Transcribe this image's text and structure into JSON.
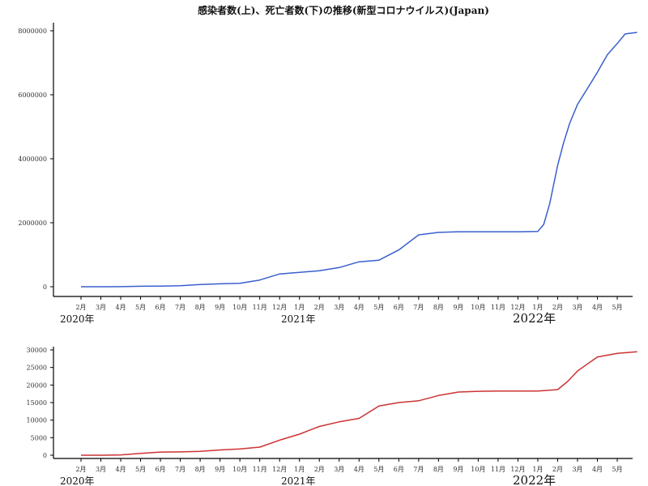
{
  "chart_data": [
    {
      "type": "line",
      "title": "感染者数(上)、死亡者数(下)の推移(新型コロナウイルス)(Japan)",
      "xlabel": "",
      "ylabel": "",
      "ylim": [
        0,
        8000000
      ],
      "yticks": [
        "0",
        "2000000",
        "4000000",
        "6000000",
        "8000000"
      ],
      "ytick_values": [
        0,
        2000000,
        4000000,
        6000000,
        8000000
      ],
      "month_labels": [
        "2月",
        "3月",
        "4月",
        "5月",
        "6月",
        "7月",
        "8月",
        "9月",
        "10月",
        "11月",
        "12月",
        "1月",
        "2月",
        "3月",
        "4月",
        "5月",
        "6月",
        "7月",
        "8月",
        "9月",
        "10月",
        "11月",
        "12月",
        "1月",
        "2月",
        "3月",
        "4月",
        "5月"
      ],
      "year_labels": [
        "2020年",
        "2021年",
        "2022年"
      ],
      "grid": false,
      "series": [
        {
          "color": "#3a5fcd",
          "x": [
            0,
            1,
            2,
            3,
            4,
            5,
            6,
            7,
            8,
            9,
            10,
            11,
            12,
            13,
            14,
            15,
            16,
            17,
            18,
            19,
            20,
            21,
            22,
            23,
            23.3,
            23.6,
            24,
            24.3,
            24.6,
            25,
            25.5,
            26,
            26.5,
            27,
            27.4,
            28
          ],
          "values": [
            0,
            0,
            3000,
            15000,
            18000,
            30000,
            70000,
            90000,
            110000,
            210000,
            400000,
            450000,
            500000,
            600000,
            780000,
            830000,
            1150000,
            1620000,
            1700000,
            1720000,
            1720000,
            1720000,
            1720000,
            1730000,
            1950000,
            2600000,
            3800000,
            4500000,
            5100000,
            5700000,
            6200000,
            6700000,
            7250000,
            7600000,
            7900000,
            7950000
          ]
        }
      ]
    },
    {
      "type": "line",
      "title": "",
      "xlabel": "",
      "ylabel": "",
      "ylim": [
        0,
        30000
      ],
      "yticks": [
        "0",
        "5000",
        "10000",
        "15000",
        "20000",
        "25000",
        "30000"
      ],
      "ytick_values": [
        0,
        5000,
        10000,
        15000,
        20000,
        25000,
        30000
      ],
      "month_labels": [
        "2月",
        "3月",
        "4月",
        "5月",
        "6月",
        "7月",
        "8月",
        "9月",
        "10月",
        "11月",
        "12月",
        "1月",
        "2月",
        "3月",
        "4月",
        "5月",
        "6月",
        "7月",
        "8月",
        "9月",
        "10月",
        "11月",
        "12月",
        "1月",
        "2月",
        "3月",
        "4月",
        "5月"
      ],
      "year_labels": [
        "2020年",
        "2021年",
        "2022年"
      ],
      "grid": false,
      "series": [
        {
          "color": "#cc3333",
          "x": [
            0,
            1,
            2,
            3,
            4,
            5,
            6,
            7,
            8,
            9,
            10,
            11,
            12,
            13,
            14,
            15,
            16,
            17,
            18,
            19,
            20,
            21,
            22,
            23,
            24,
            24.5,
            25,
            25.5,
            26,
            27,
            28
          ],
          "values": [
            0,
            0,
            100,
            500,
            900,
            950,
            1100,
            1500,
            1800,
            2300,
            4300,
            6000,
            8200,
            9500,
            10500,
            14000,
            15000,
            15500,
            17000,
            18000,
            18200,
            18300,
            18300,
            18300,
            18700,
            21000,
            24000,
            26000,
            28000,
            29000,
            29500
          ]
        }
      ]
    }
  ]
}
